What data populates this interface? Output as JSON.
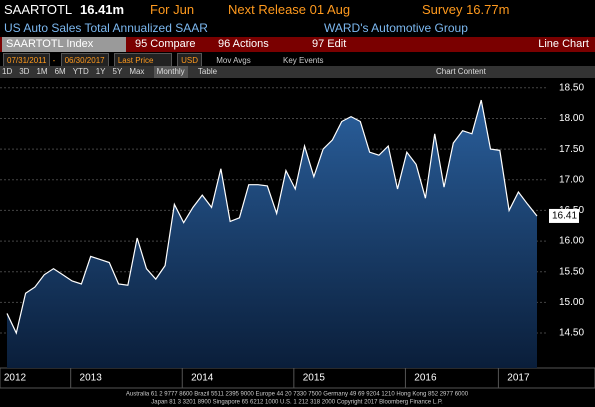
{
  "header": {
    "ticker": "SAARTOTL",
    "last": "16.41m",
    "period": "For Jun",
    "release": "Next Release 01 Aug",
    "survey": "Survey 16.77m"
  },
  "description": "US Auto Sales Total Annualized SAAR",
  "source": "WARD's Automotive Group",
  "toolbar": {
    "security": "SAARTOTL Index",
    "buttons": [
      "95 Compare",
      "96 Actions",
      "97 Edit"
    ],
    "view": "Line Chart"
  },
  "controls": {
    "start_date": "07/31/2011",
    "end_date": "06/30/2017",
    "field": "Last Price",
    "currency": "USD",
    "mov_avgs": "Mov Avgs",
    "key_events": "Key Events"
  },
  "periods": [
    "1D",
    "3D",
    "1M",
    "6M",
    "YTD",
    "1Y",
    "5Y",
    "Max"
  ],
  "frequency": "Monthly",
  "table": "Table",
  "chart_content": "Chart Content",
  "footer": [
    "Australia 61 2 9777 8600 Brazil 5511 2395 9000 Europe 44 20 7330 7500 Germany 49 69 9204 1210 Hong Kong 852 2977 6000",
    "Japan 81 3 3201 8900   Singapore 65 6212 1000   U.S. 1 212 318 2000   Copyright 2017 Bloomberg Finance L.P."
  ],
  "chart_data": {
    "type": "area",
    "color": "#ffffff",
    "fill": "#1f4e86",
    "categories": [
      "2012",
      null,
      null,
      null,
      null,
      null,
      null,
      null,
      null,
      "2013",
      null,
      null,
      null,
      null,
      null,
      null,
      null,
      null,
      null,
      null,
      null,
      "2014",
      null,
      null,
      null,
      null,
      null,
      null,
      null,
      null,
      null,
      null,
      null,
      "2015",
      null,
      null,
      null,
      null,
      null,
      null,
      null,
      null,
      null,
      null,
      null,
      "2016",
      null,
      null,
      null,
      null,
      null,
      null,
      null,
      null,
      null,
      "2017",
      null,
      null
    ],
    "values": [
      14.82,
      14.5,
      15.15,
      15.25,
      15.45,
      15.55,
      15.45,
      15.35,
      15.3,
      15.75,
      15.7,
      15.65,
      15.3,
      15.28,
      16.05,
      15.55,
      15.38,
      15.6,
      16.6,
      16.3,
      16.55,
      16.75,
      16.55,
      17.18,
      16.32,
      16.38,
      16.92,
      16.92,
      16.9,
      16.45,
      17.15,
      16.85,
      17.55,
      17.05,
      17.5,
      17.65,
      17.95,
      18.03,
      17.95,
      17.45,
      17.4,
      17.55,
      16.85,
      17.45,
      17.25,
      16.7,
      17.75,
      16.88,
      17.6,
      17.8,
      17.75,
      18.3,
      17.5,
      17.48,
      16.5,
      16.8,
      16.6,
      16.41
    ],
    "ylim": [
      13.93,
      18.66
    ],
    "yticks": [
      {
        "value": 14.5,
        "label": "14.50"
      },
      {
        "value": 15,
        "label": "15.00"
      },
      {
        "value": 15.5,
        "label": "15.50"
      },
      {
        "value": 16,
        "label": "16.00"
      },
      {
        "value": 16.5,
        "label": "16.50"
      },
      {
        "value": 17,
        "label": "17.00"
      },
      {
        "value": 17.5,
        "label": "17.50"
      },
      {
        "value": 18,
        "label": "18.00"
      },
      {
        "value": 18.5,
        "label": "18.50"
      }
    ],
    "grid": true
  }
}
